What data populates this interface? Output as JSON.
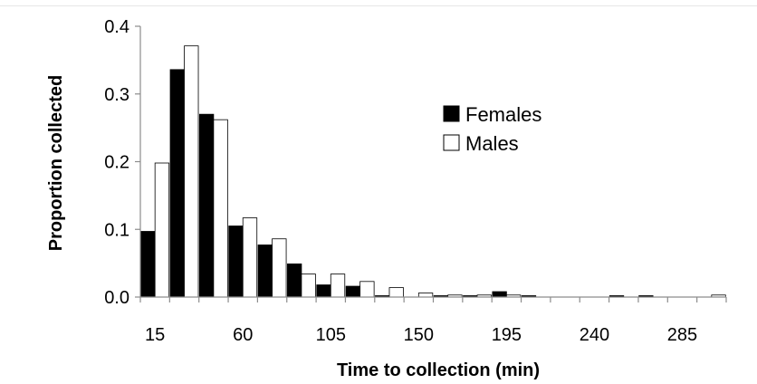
{
  "chart_data": {
    "type": "bar",
    "xlabel": "Time to collection (min)",
    "ylabel": "Proportion collected",
    "ylim": [
      0,
      0.4
    ],
    "yticks": [
      "0.0",
      "0.1",
      "0.2",
      "0.3",
      "0.4"
    ],
    "xtick_labels": [
      "15",
      "60",
      "105",
      "150",
      "195",
      "240",
      "285"
    ],
    "legend_position": "right",
    "grid": false,
    "categories": [
      "15",
      "30",
      "45",
      "60",
      "75",
      "90",
      "105",
      "120",
      "135",
      "150",
      "165",
      "180",
      "195",
      "210",
      "225",
      "240",
      "255",
      "270",
      "285",
      "300"
    ],
    "series": [
      {
        "name": "Females",
        "color": "#000000",
        "values": [
          0.097,
          0.336,
          0.27,
          0.105,
          0.077,
          0.049,
          0.018,
          0.016,
          0.002,
          0.0,
          0.002,
          0.002,
          0.008,
          0.002,
          0.0,
          0.0,
          0.002,
          0.002,
          0.0,
          0.0
        ]
      },
      {
        "name": "Males",
        "color": "#ffffff",
        "values": [
          0.198,
          0.371,
          0.262,
          0.117,
          0.086,
          0.034,
          0.034,
          0.023,
          0.014,
          0.006,
          0.003,
          0.003,
          0.003,
          0.0,
          0.0,
          0.0,
          0.0,
          0.0,
          0.0,
          0.003
        ]
      }
    ]
  }
}
